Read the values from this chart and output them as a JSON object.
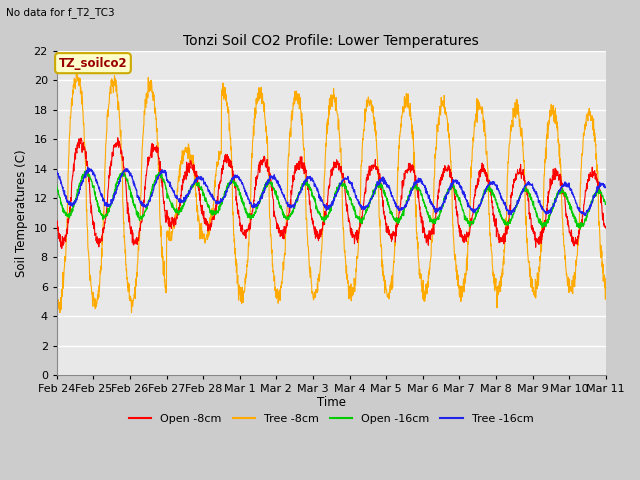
{
  "title": "Tonzi Soil CO2 Profile: Lower Temperatures",
  "subtitle": "No data for f_T2_TC3",
  "ylabel": "Soil Temperatures (C)",
  "xlabel": "Time",
  "ylim": [
    0,
    22
  ],
  "yticks": [
    0,
    2,
    4,
    6,
    8,
    10,
    12,
    14,
    16,
    18,
    20,
    22
  ],
  "xtick_labels": [
    "Feb 24",
    "Feb 25",
    "Feb 26",
    "Feb 27",
    "Feb 28",
    "Mar 1",
    "Mar 2",
    "Mar 3",
    "Mar 4",
    "Mar 5",
    "Mar 6",
    "Mar 7",
    "Mar 8",
    "Mar 9",
    "Mar 10",
    "Mar 11"
  ],
  "legend_entries": [
    "Open -8cm",
    "Tree -8cm",
    "Open -16cm",
    "Tree -16cm"
  ],
  "legend_colors": [
    "#ff0000",
    "#ffaa00",
    "#00cc00",
    "#0000cc"
  ],
  "line_colors": [
    "#ff0000",
    "#ffaa00",
    "#00cc00",
    "#2222ee"
  ],
  "fig_bg": "#cccccc",
  "plot_bg": "#e8e8e8",
  "grid_color": "#ffffff",
  "box_facecolor": "#ffffcc",
  "box_edgecolor": "#ccaa00",
  "box_text_color": "#990000",
  "box_label": "TZ_soilco2",
  "num_days": 15
}
